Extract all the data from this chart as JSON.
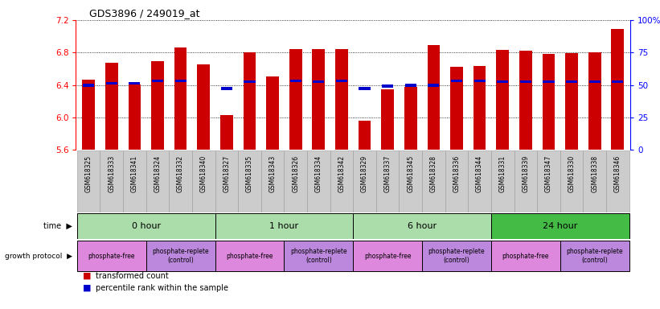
{
  "title": "GDS3896 / 249019_at",
  "samples": [
    "GSM618325",
    "GSM618333",
    "GSM618341",
    "GSM618324",
    "GSM618332",
    "GSM618340",
    "GSM618327",
    "GSM618335",
    "GSM618343",
    "GSM618326",
    "GSM618334",
    "GSM618342",
    "GSM618329",
    "GSM618337",
    "GSM618345",
    "GSM618328",
    "GSM618336",
    "GSM618344",
    "GSM618331",
    "GSM618339",
    "GSM618347",
    "GSM618330",
    "GSM618338",
    "GSM618346"
  ],
  "transformed_count": [
    6.47,
    6.67,
    6.41,
    6.69,
    6.86,
    6.65,
    6.03,
    6.8,
    6.51,
    6.84,
    6.84,
    6.84,
    5.96,
    6.35,
    6.38,
    6.89,
    6.62,
    6.63,
    6.83,
    6.82,
    6.78,
    6.79,
    6.8,
    7.09
  ],
  "percentile_rank": [
    6.4,
    6.42,
    6.42,
    6.45,
    6.45,
    null,
    6.36,
    6.44,
    null,
    6.45,
    6.44,
    6.45,
    6.36,
    6.39,
    6.4,
    6.4,
    6.45,
    6.45,
    6.44,
    6.44,
    6.44,
    6.44,
    6.44,
    6.44
  ],
  "ymin": 5.6,
  "ymax": 7.2,
  "yticks": [
    5.6,
    6.0,
    6.4,
    6.8,
    7.2
  ],
  "right_yticks": [
    0,
    25,
    50,
    75,
    100
  ],
  "bar_color": "#cc0000",
  "percentile_color": "#0000cc",
  "time_groups": [
    {
      "label": "0 hour",
      "start": 0,
      "end": 6,
      "color": "#aaddaa"
    },
    {
      "label": "1 hour",
      "start": 6,
      "end": 12,
      "color": "#aaddaa"
    },
    {
      "label": "6 hour",
      "start": 12,
      "end": 18,
      "color": "#aaddaa"
    },
    {
      "label": "24 hour",
      "start": 18,
      "end": 24,
      "color": "#44bb44"
    }
  ],
  "protocol_groups": [
    {
      "label": "phosphate-free",
      "start": 0,
      "end": 3,
      "color": "#dd88dd"
    },
    {
      "label": "phosphate-replete\n(control)",
      "start": 3,
      "end": 6,
      "color": "#bb88dd"
    },
    {
      "label": "phosphate-free",
      "start": 6,
      "end": 9,
      "color": "#dd88dd"
    },
    {
      "label": "phosphate-replete\n(control)",
      "start": 9,
      "end": 12,
      "color": "#bb88dd"
    },
    {
      "label": "phosphate-free",
      "start": 12,
      "end": 15,
      "color": "#dd88dd"
    },
    {
      "label": "phosphate-replete\n(control)",
      "start": 15,
      "end": 18,
      "color": "#bb88dd"
    },
    {
      "label": "phosphate-free",
      "start": 18,
      "end": 21,
      "color": "#dd88dd"
    },
    {
      "label": "phosphate-replete\n(control)",
      "start": 21,
      "end": 24,
      "color": "#bb88dd"
    }
  ],
  "legend_transformed": "transformed count",
  "legend_percentile": "percentile rank within the sample",
  "time_label": "time",
  "protocol_label": "growth protocol",
  "xleft": 0.115,
  "xright": 0.955,
  "ytop": 0.935,
  "ybottom": 0.01
}
